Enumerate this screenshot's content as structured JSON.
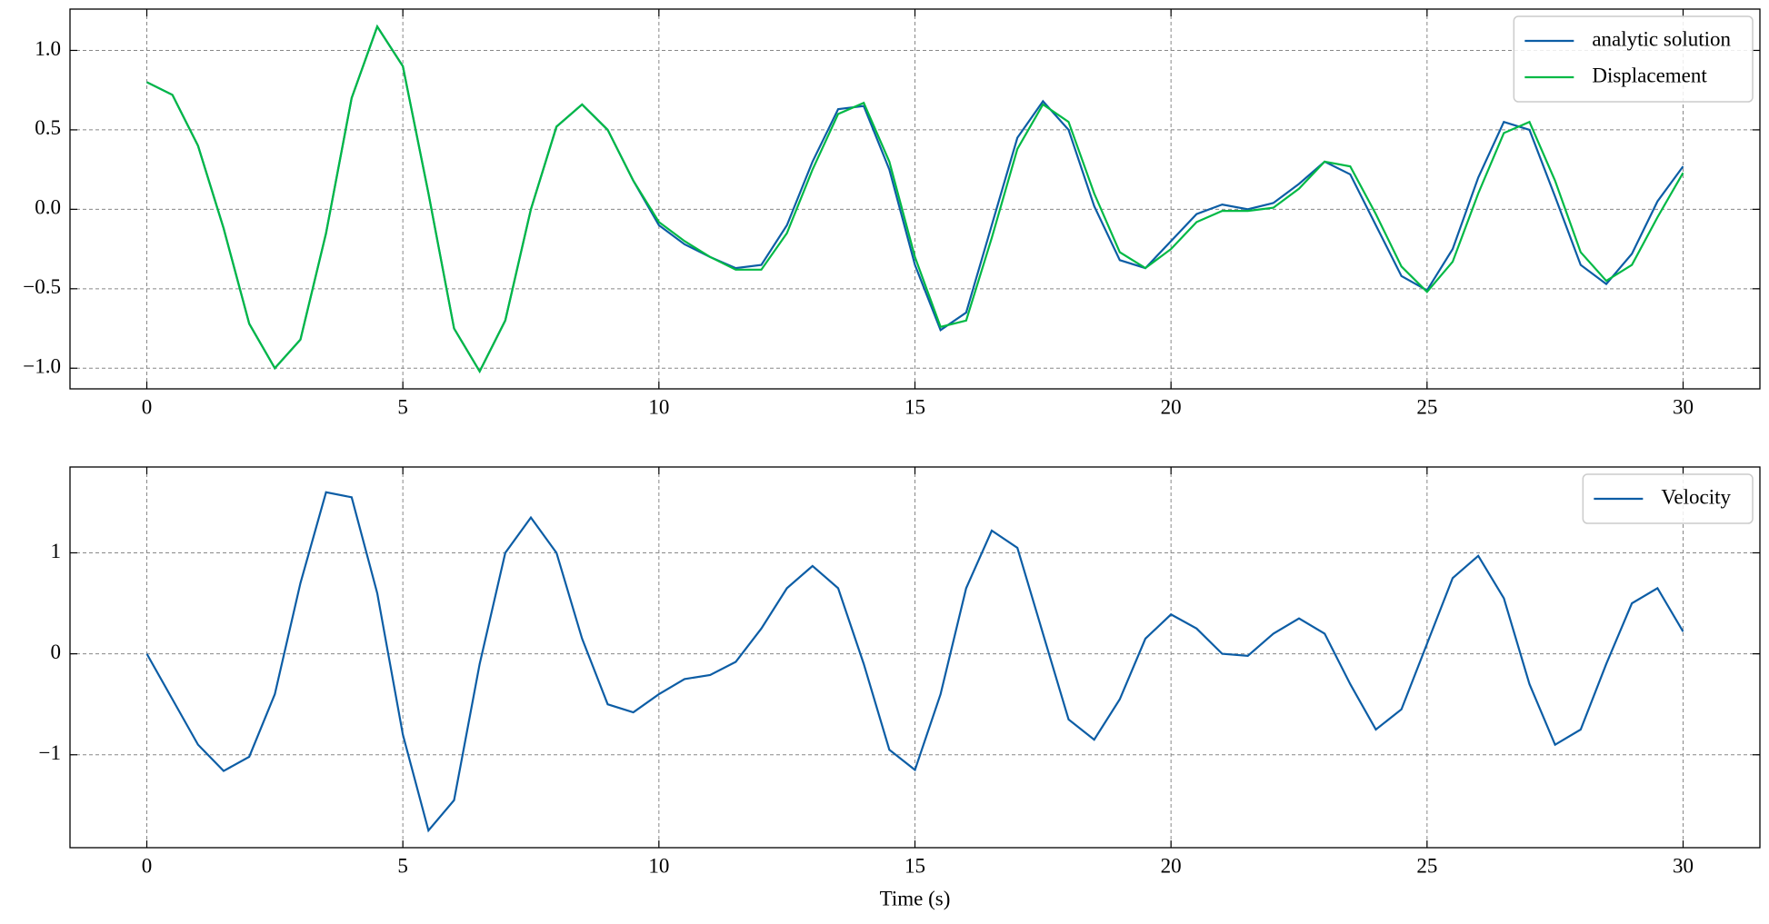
{
  "chart_data": [
    {
      "type": "line",
      "x": [
        0,
        0.5,
        1,
        1.5,
        2,
        2.5,
        3,
        3.5,
        4,
        4.5,
        5,
        5.5,
        6,
        6.5,
        7,
        7.5,
        8,
        8.5,
        9,
        9.5,
        10,
        10.5,
        11,
        11.5,
        12,
        12.5,
        13,
        13.5,
        14,
        14.5,
        15,
        15.5,
        16,
        16.5,
        17,
        17.5,
        18,
        18.5,
        19,
        19.5,
        20,
        20.5,
        21,
        21.5,
        22,
        22.5,
        23,
        23.5,
        24,
        24.5,
        25,
        25.5,
        26,
        26.5,
        27,
        27.5,
        28,
        28.5,
        29,
        29.5,
        30
      ],
      "series": [
        {
          "name": "analytic solution",
          "color": "#0C5DA5",
          "values": [
            0.8,
            0.72,
            0.4,
            -0.12,
            -0.72,
            -1.0,
            -0.82,
            -0.15,
            0.7,
            1.15,
            0.9,
            0.1,
            -0.75,
            -1.02,
            -0.7,
            0.0,
            0.52,
            0.66,
            0.5,
            0.18,
            -0.1,
            -0.22,
            -0.3,
            -0.37,
            -0.35,
            -0.1,
            0.3,
            0.63,
            0.65,
            0.25,
            -0.35,
            -0.76,
            -0.65,
            -0.1,
            0.45,
            0.68,
            0.5,
            0.02,
            -0.32,
            -0.37,
            -0.2,
            -0.03,
            0.03,
            0.0,
            0.04,
            0.16,
            0.3,
            0.22,
            -0.1,
            -0.42,
            -0.51,
            -0.25,
            0.2,
            0.55,
            0.5,
            0.08,
            -0.35,
            -0.47,
            -0.28,
            0.05,
            0.27
          ]
        },
        {
          "name": "Displacement",
          "color": "#00B945",
          "values": [
            0.8,
            0.72,
            0.4,
            -0.12,
            -0.72,
            -1.0,
            -0.82,
            -0.15,
            0.7,
            1.15,
            0.9,
            0.1,
            -0.75,
            -1.02,
            -0.7,
            0.0,
            0.52,
            0.66,
            0.5,
            0.18,
            -0.08,
            -0.2,
            -0.3,
            -0.38,
            -0.38,
            -0.15,
            0.25,
            0.6,
            0.67,
            0.3,
            -0.3,
            -0.74,
            -0.7,
            -0.18,
            0.38,
            0.66,
            0.55,
            0.1,
            -0.27,
            -0.37,
            -0.25,
            -0.08,
            -0.01,
            -0.01,
            0.01,
            0.13,
            0.3,
            0.27,
            -0.03,
            -0.36,
            -0.52,
            -0.33,
            0.1,
            0.48,
            0.55,
            0.18,
            -0.27,
            -0.45,
            -0.35,
            -0.05,
            0.23
          ]
        }
      ],
      "xlim": [
        -1.5,
        31.5
      ],
      "xticks": [
        0,
        5,
        10,
        15,
        20,
        25,
        30
      ],
      "ylim": [
        -1.13,
        1.26
      ],
      "yticks": [
        {
          "value": -1,
          "label": "−1.0"
        },
        {
          "value": -0.5,
          "label": "−0.5"
        },
        {
          "value": 0,
          "label": "0.0"
        },
        0.5,
        {
          "value": 1,
          "label": "1.0"
        }
      ],
      "grid": true,
      "legend": "upper right"
    },
    {
      "type": "line",
      "x": [
        0,
        0.5,
        1,
        1.5,
        2,
        2.5,
        3,
        3.5,
        4,
        4.5,
        5,
        5.5,
        6,
        6.5,
        7,
        7.5,
        8,
        8.5,
        9,
        9.5,
        10,
        10.5,
        11,
        11.5,
        12,
        12.5,
        13,
        13.5,
        14,
        14.5,
        15,
        15.5,
        16,
        16.5,
        17,
        17.5,
        18,
        18.5,
        19,
        19.5,
        20,
        20.5,
        21,
        21.5,
        22,
        22.5,
        23,
        23.5,
        24,
        24.5,
        25,
        25.5,
        26,
        26.5,
        27,
        27.5,
        28,
        28.5,
        29,
        29.5,
        30
      ],
      "series": [
        {
          "name": "Velocity",
          "color": "#0C5DA5",
          "values": [
            0,
            -0.45,
            -0.9,
            -1.16,
            -1.02,
            -0.4,
            0.7,
            1.6,
            1.55,
            0.6,
            -0.8,
            -1.75,
            -1.45,
            -0.1,
            1.0,
            1.35,
            1.0,
            0.15,
            -0.5,
            -0.58,
            -0.4,
            -0.25,
            -0.21,
            -0.08,
            0.25,
            0.65,
            0.87,
            0.65,
            -0.1,
            -0.95,
            -1.15,
            -0.4,
            0.65,
            1.22,
            1.05,
            0.2,
            -0.65,
            -0.85,
            -0.45,
            0.15,
            0.39,
            0.25,
            0.0,
            -0.02,
            0.2,
            0.35,
            0.2,
            -0.3,
            -0.75,
            -0.55,
            0.1,
            0.75,
            0.97,
            0.55,
            -0.3,
            -0.9,
            -0.75,
            -0.1,
            0.5,
            0.65,
            0.22
          ]
        }
      ],
      "xlim": [
        -1.5,
        31.5
      ],
      "xticks": [
        0,
        5,
        10,
        15,
        20,
        25,
        30
      ],
      "ylim": [
        -1.92,
        1.85
      ],
      "yticks": [
        {
          "value": -1,
          "label": "−1"
        },
        0,
        1
      ],
      "xlabel": "Time (s)",
      "grid": true,
      "legend": "upper right"
    }
  ]
}
